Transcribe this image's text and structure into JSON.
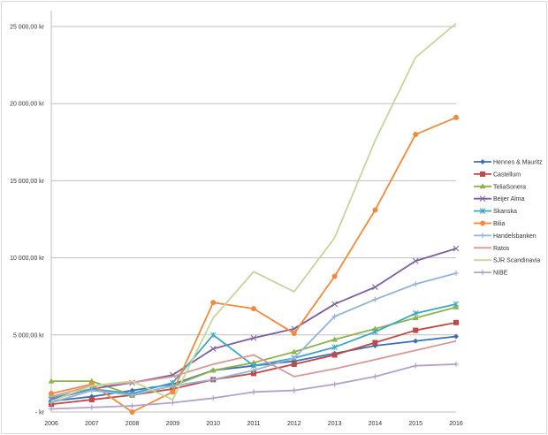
{
  "chart_data": {
    "type": "line",
    "title": "",
    "xlabel": "",
    "ylabel": "",
    "x": [
      "2006",
      "2007",
      "2008",
      "2009",
      "2010",
      "2011",
      "2012",
      "2013",
      "2014",
      "2015",
      "2016"
    ],
    "ylim": [
      0,
      25000
    ],
    "yticks": [
      0,
      5000,
      10000,
      15000,
      20000,
      25000
    ],
    "ytick_labels": [
      "-   kr",
      "5 000,00 kr",
      "10 000,00 kr",
      "15 000,00 kr",
      "20 000,00 kr",
      "25 000,00 kr"
    ],
    "grid": true,
    "legend_position": "right",
    "series": [
      {
        "name": "Hennes & Mauritz",
        "color": "#3b6fb3",
        "marker": "diamond",
        "values": [
          700,
          1000,
          1400,
          1800,
          2700,
          3000,
          3300,
          3800,
          4300,
          4600,
          4900
        ]
      },
      {
        "name": "Castellum",
        "color": "#be4b48",
        "marker": "square",
        "values": [
          500,
          800,
          1100,
          1500,
          2100,
          2500,
          3100,
          3700,
          4500,
          5300,
          5800
        ]
      },
      {
        "name": "TeliaSonera",
        "color": "#8fb24c",
        "marker": "triangle",
        "values": [
          2000,
          2000,
          1100,
          1700,
          2700,
          3200,
          3900,
          4700,
          5400,
          6100,
          6800
        ]
      },
      {
        "name": "Beijer Alma",
        "color": "#7d5fa0",
        "marker": "x",
        "values": [
          800,
          1500,
          1900,
          2400,
          4100,
          4800,
          5400,
          7000,
          8100,
          9800,
          10600
        ]
      },
      {
        "name": "Skanska",
        "color": "#3fa6c0",
        "marker": "star",
        "values": [
          900,
          1500,
          1200,
          1900,
          5000,
          3000,
          3500,
          4200,
          5200,
          6400,
          7000
        ]
      },
      {
        "name": "Bilia",
        "color": "#f08a3c",
        "marker": "circle",
        "values": [
          1200,
          1800,
          0,
          1300,
          7100,
          6700,
          5100,
          8800,
          13100,
          18000,
          19100
        ]
      },
      {
        "name": "Handelsbanken",
        "color": "#95b3d7",
        "marker": "plus",
        "values": [
          600,
          1400,
          1100,
          1700,
          2100,
          2700,
          3500,
          6200,
          7300,
          8300,
          9000
        ]
      },
      {
        "name": "Ratos",
        "color": "#d99694",
        "marker": "none",
        "values": [
          1000,
          1700,
          1900,
          2300,
          3100,
          3700,
          2300,
          2800,
          3400,
          4000,
          4600
        ]
      },
      {
        "name": "SJR Scandinavia",
        "color": "#c3d69b",
        "marker": "none",
        "values": [
          700,
          1700,
          2000,
          800,
          6100,
          9100,
          7800,
          11300,
          17600,
          23000,
          25200
        ]
      },
      {
        "name": "NIBE",
        "color": "#b3a2c7",
        "marker": "plus",
        "values": [
          200,
          300,
          400,
          600,
          900,
          1300,
          1400,
          1800,
          2300,
          3000,
          3100
        ]
      }
    ]
  }
}
